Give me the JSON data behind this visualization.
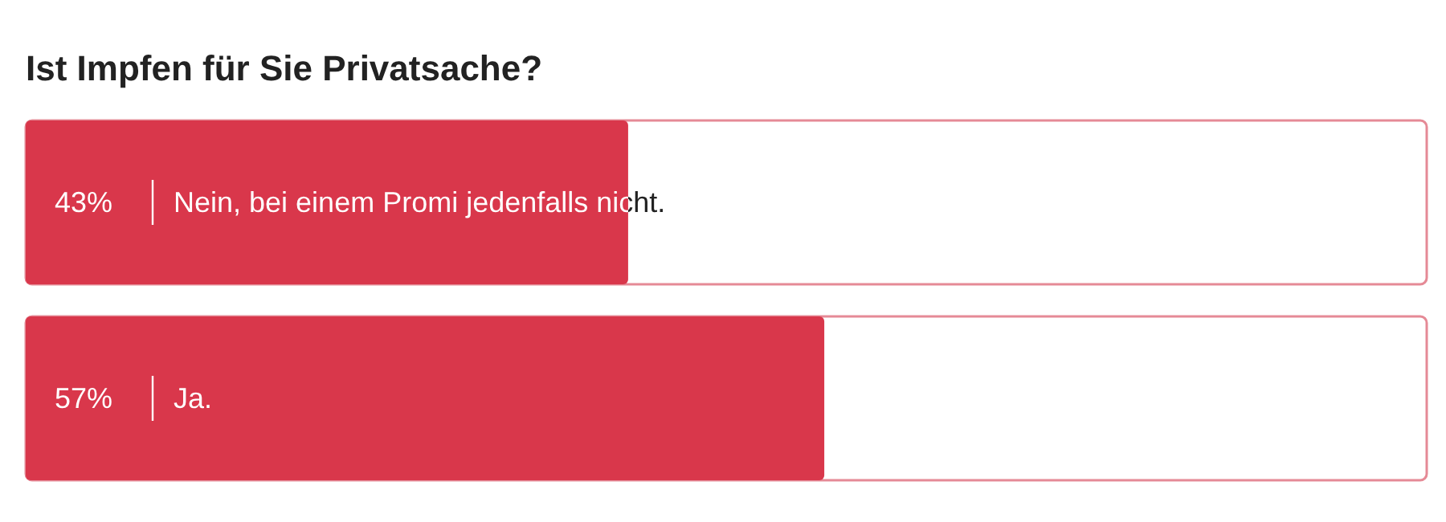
{
  "chart_data": {
    "type": "bar",
    "orientation": "horizontal",
    "title": "Ist Impfen für Sie Privatsache?",
    "categories": [
      "Nein, bei einem Promi jedenfalls nicht.",
      "Ja."
    ],
    "values": [
      43,
      57
    ],
    "value_labels": [
      "43%",
      "57%"
    ],
    "color": "#d9374b",
    "xlim": [
      0,
      100
    ],
    "tick_labels": false
  }
}
